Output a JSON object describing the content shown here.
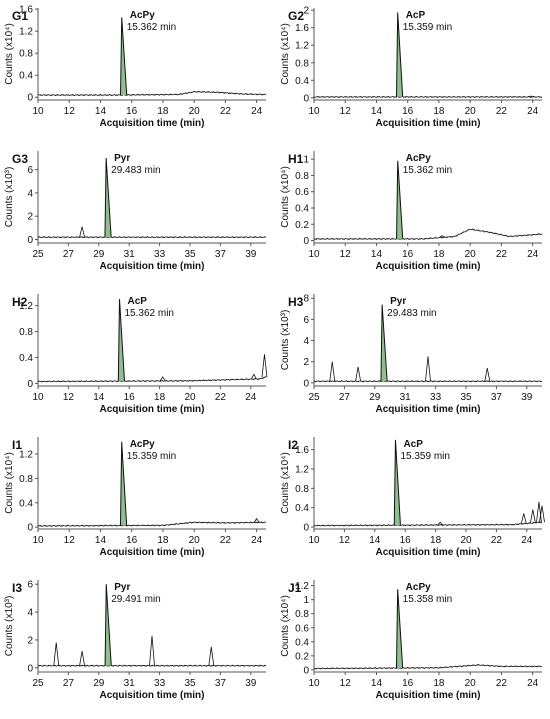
{
  "panels": [
    {
      "label": "G1",
      "compound": "AcPy",
      "retention": "15.362 min",
      "xlabel": "Acquisition time (min)",
      "ylabel": "Counts (x10⁴)",
      "xticks": [
        10,
        12,
        14,
        16,
        18,
        20,
        22,
        24
      ],
      "xlim": [
        10,
        24.6
      ],
      "yticks": [
        0,
        0.4,
        0.8,
        1.2,
        1.6
      ],
      "ytick_labels": [
        "0",
        "0.4",
        "0.8",
        "1.2",
        "1.6"
      ],
      "ylim": [
        -0.05,
        1.62
      ],
      "peak": {
        "x": 15.362,
        "y": 1.45
      },
      "minor_peaks": [],
      "baseline": [
        [
          10,
          0.04
        ],
        [
          15,
          0.04
        ],
        [
          19,
          0.05
        ],
        [
          20,
          0.1
        ],
        [
          21.5,
          0.09
        ],
        [
          23,
          0.06
        ],
        [
          24.6,
          0.05
        ]
      ]
    },
    {
      "label": "G2",
      "compound": "AcP",
      "retention": "15.359 min",
      "xlabel": "Acquisition time (min)",
      "ylabel": "Counts (x10⁴)",
      "xticks": [
        10,
        12,
        14,
        16,
        18,
        20,
        22,
        24
      ],
      "xlim": [
        10,
        24.6
      ],
      "yticks": [
        0,
        0.4,
        0.8,
        1.2,
        1.6,
        2
      ],
      "ytick_labels": [
        "0",
        "0.4",
        "0.8",
        "1.2",
        "1.6",
        "2"
      ],
      "ylim": [
        -0.05,
        2.05
      ],
      "peak": {
        "x": 15.359,
        "y": 1.95
      },
      "minor_peaks": [
        {
          "x": 23.9,
          "y": 0.04
        }
      ],
      "baseline": [
        [
          10,
          0.02
        ],
        [
          24.6,
          0.02
        ]
      ]
    },
    {
      "label": "G3",
      "compound": "Pyr",
      "retention": "29.483 min",
      "xlabel": "Acquisition time (min)",
      "ylabel": "Counts (x10³)",
      "xticks": [
        25,
        27,
        29,
        31,
        33,
        35,
        37,
        39
      ],
      "xlim": [
        25,
        40
      ],
      "yticks": [
        0,
        2,
        4,
        6
      ],
      "ytick_labels": [
        "0",
        "2",
        "4",
        "6"
      ],
      "ylim": [
        -0.3,
        7.6
      ],
      "peak": {
        "x": 29.483,
        "y": 7.0
      },
      "minor_peaks": [
        {
          "x": 27.9,
          "y": 1.1
        }
      ],
      "baseline": [
        [
          25,
          0.2
        ],
        [
          40,
          0.2
        ]
      ]
    },
    {
      "label": "H1",
      "compound": "AcPy",
      "retention": "15.362 min",
      "xlabel": "Acquisition time (min)",
      "ylabel": "Counts (x10⁴)",
      "xticks": [
        10,
        12,
        14,
        16,
        18,
        20,
        22,
        24
      ],
      "xlim": [
        10,
        24.6
      ],
      "yticks": [
        0,
        0.2,
        0.4,
        0.6,
        0.8,
        1
      ],
      "ytick_labels": [
        "0",
        "0.2",
        "0.4",
        "0.6",
        "0.8",
        "1"
      ],
      "ylim": [
        -0.03,
        1.1
      ],
      "peak": {
        "x": 15.362,
        "y": 0.98
      },
      "minor_peaks": [
        {
          "x": 18.2,
          "y": 0.06
        }
      ],
      "baseline": [
        [
          10,
          0.02
        ],
        [
          17,
          0.02
        ],
        [
          19,
          0.05
        ],
        [
          20,
          0.14
        ],
        [
          21.3,
          0.1
        ],
        [
          22.5,
          0.05
        ],
        [
          24.6,
          0.08
        ]
      ]
    },
    {
      "label": "H2",
      "compound": "AcP",
      "retention": "15.362 min",
      "xlabel": "Acquisition time (min)",
      "ylabel": "",
      "xticks": [
        10,
        12,
        14,
        16,
        18,
        20,
        22,
        24
      ],
      "xlim": [
        10,
        25
      ],
      "yticks": [
        0,
        0.4,
        0.8,
        1.2
      ],
      "ytick_labels": [
        "0",
        "0.4",
        "0.8",
        "1.2"
      ],
      "ylim": [
        -0.04,
        1.38
      ],
      "peak": {
        "x": 15.362,
        "y": 1.3
      },
      "minor_peaks": [
        {
          "x": 18.2,
          "y": 0.1
        },
        {
          "x": 24.2,
          "y": 0.14
        },
        {
          "x": 24.9,
          "y": 0.45
        }
      ],
      "baseline": [
        [
          10,
          0.03
        ],
        [
          20,
          0.04
        ],
        [
          24.6,
          0.07
        ],
        [
          25,
          0.1
        ]
      ]
    },
    {
      "label": "H3",
      "compound": "Pyr",
      "retention": "29.483 min",
      "xlabel": "Acquisition time (min)",
      "ylabel": "Counts (x10³)",
      "xticks": [
        25,
        27,
        29,
        31,
        33,
        35,
        37,
        39
      ],
      "xlim": [
        25,
        40
      ],
      "yticks": [
        0,
        2,
        4,
        6,
        8
      ],
      "ytick_labels": [
        "0",
        "2",
        "4",
        "6",
        "8"
      ],
      "ylim": [
        -0.3,
        8.4
      ],
      "peak": {
        "x": 29.483,
        "y": 7.4
      },
      "minor_peaks": [
        {
          "x": 26.2,
          "y": 2.0
        },
        {
          "x": 27.9,
          "y": 1.5
        },
        {
          "x": 32.5,
          "y": 2.5
        },
        {
          "x": 36.4,
          "y": 1.4
        }
      ],
      "baseline": [
        [
          25,
          0.15
        ],
        [
          40,
          0.15
        ]
      ]
    },
    {
      "label": "I1",
      "compound": "AcPy",
      "retention": "15.359 min",
      "xlabel": "Acquisition time (min)",
      "ylabel": "Counts (x10⁴)",
      "xticks": [
        10,
        12,
        14,
        16,
        18,
        20,
        22,
        24
      ],
      "xlim": [
        10,
        24.6
      ],
      "yticks": [
        0,
        0.4,
        0.8,
        1.2
      ],
      "ytick_labels": [
        "0",
        "0.4",
        "0.8",
        "1.2"
      ],
      "ylim": [
        -0.03,
        1.48
      ],
      "peak": {
        "x": 15.359,
        "y": 1.4
      },
      "minor_peaks": [
        {
          "x": 24.0,
          "y": 0.14
        }
      ],
      "baseline": [
        [
          10,
          0.02
        ],
        [
          18,
          0.03
        ],
        [
          20,
          0.08
        ],
        [
          22,
          0.07
        ],
        [
          24.6,
          0.08
        ]
      ]
    },
    {
      "label": "I2",
      "compound": "AcP",
      "retention": "15.359 min",
      "xlabel": "Acquisition time (min)",
      "ylabel": "Counts (x10⁴)",
      "xticks": [
        10,
        12,
        14,
        16,
        18,
        20,
        22,
        24
      ],
      "xlim": [
        10,
        25
      ],
      "yticks": [
        0,
        0.4,
        0.8,
        1.2,
        1.6
      ],
      "ytick_labels": [
        "0",
        "0.4",
        "0.8",
        "1.2",
        "1.6"
      ],
      "ylim": [
        -0.04,
        1.86
      ],
      "peak": {
        "x": 15.359,
        "y": 1.8
      },
      "minor_peaks": [
        {
          "x": 18.3,
          "y": 0.1
        },
        {
          "x": 23.8,
          "y": 0.28
        },
        {
          "x": 24.4,
          "y": 0.36
        },
        {
          "x": 24.8,
          "y": 0.52
        },
        {
          "x": 25.0,
          "y": 0.44
        }
      ],
      "baseline": [
        [
          10,
          0.03
        ],
        [
          23,
          0.05
        ],
        [
          25,
          0.1
        ]
      ]
    },
    {
      "label": "I3",
      "compound": "Pyr",
      "retention": "29.491 min",
      "xlabel": "Acquisition time (min)",
      "ylabel": "Counts (x10³)",
      "xticks": [
        25,
        27,
        29,
        31,
        33,
        35,
        37,
        39
      ],
      "xlim": [
        25,
        40
      ],
      "yticks": [
        0,
        2,
        4,
        6
      ],
      "ytick_labels": [
        "0",
        "2",
        "4",
        "6"
      ],
      "ylim": [
        -0.3,
        6.3
      ],
      "peak": {
        "x": 29.491,
        "y": 6.0
      },
      "minor_peaks": [
        {
          "x": 26.2,
          "y": 1.8
        },
        {
          "x": 27.9,
          "y": 1.2
        },
        {
          "x": 32.5,
          "y": 2.3
        },
        {
          "x": 36.4,
          "y": 1.5
        }
      ],
      "baseline": [
        [
          25,
          0.15
        ],
        [
          40,
          0.15
        ]
      ]
    },
    {
      "label": "J1",
      "compound": "AcPy",
      "retention": "15.358 min",
      "xlabel": "Acquisition time (min)",
      "ylabel": "Counts (x10⁴)",
      "xticks": [
        10,
        12,
        14,
        16,
        18,
        20,
        22,
        24
      ],
      "xlim": [
        10,
        24.6
      ],
      "yticks": [
        0,
        0.2,
        0.4,
        0.6,
        0.8,
        1,
        1.2
      ],
      "ytick_labels": [
        "0",
        "0.2",
        "0.4",
        "0.6",
        "0.8",
        "1",
        "1.2"
      ],
      "ylim": [
        -0.03,
        1.28
      ],
      "peak": {
        "x": 15.358,
        "y": 1.15
      },
      "minor_peaks": [],
      "baseline": [
        [
          10,
          0.02
        ],
        [
          18,
          0.03
        ],
        [
          20.5,
          0.07
        ],
        [
          22,
          0.05
        ],
        [
          24.6,
          0.05
        ]
      ]
    }
  ],
  "colors": {
    "peak_fill": "#8fbf8f",
    "trace": "#111111",
    "axis": "#555555"
  }
}
